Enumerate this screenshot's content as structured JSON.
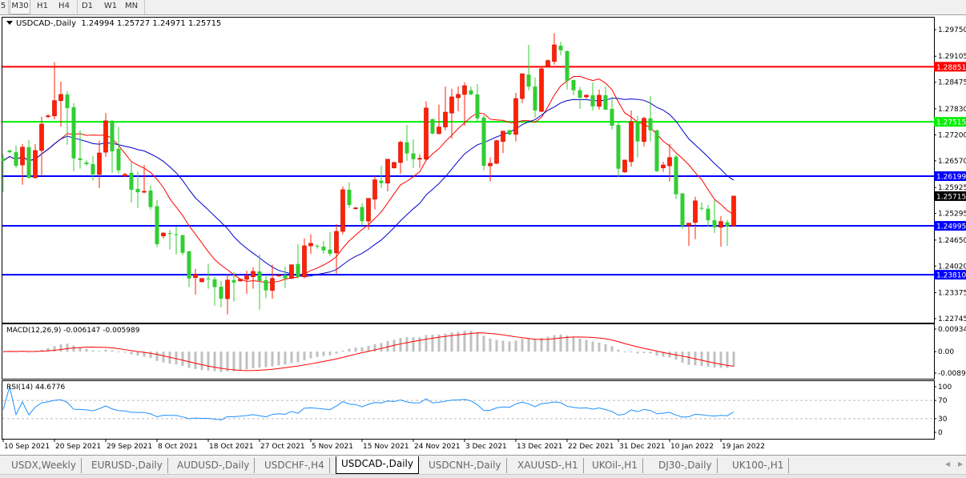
{
  "timeframes": [
    {
      "label": "5",
      "active": false
    },
    {
      "label": "M30",
      "active": true
    },
    {
      "label": "H1",
      "active": false
    },
    {
      "label": "H4",
      "active": false
    },
    {
      "label": "D1",
      "active": false
    },
    {
      "label": "W1",
      "active": false
    },
    {
      "label": "MN",
      "active": false
    }
  ],
  "header": {
    "symbol": "USDCAD-,Daily",
    "ohlc": "1.24994 1.25727 1.24971 1.25715"
  },
  "macd": {
    "label": "MACD(12,26,9) -0.006147 -0.005989",
    "ticks": [
      "0.009345",
      "0.00",
      "-0.00890"
    ]
  },
  "rsi": {
    "label": "RSI(14) 44.6776",
    "ticks": [
      "100",
      "70",
      "30",
      "0"
    ]
  },
  "colors": {
    "bull": "#ff2200",
    "bear": "#32cd32",
    "ma_fast": "#ff0000",
    "ma_slow": "#0000cc",
    "macd_hist": "#c0c0c0",
    "macd_signal": "#ff0000",
    "rsi": "#1e90ff"
  },
  "levels": [
    {
      "value": 1.28851,
      "label": "1.28851",
      "color": "#ff0000"
    },
    {
      "value": 1.27515,
      "label": "1.27515",
      "color": "#00ee00"
    },
    {
      "value": 1.26199,
      "label": "1.26199",
      "color": "#0000ff"
    },
    {
      "value": 1.24995,
      "label": "1.24995",
      "color": "#0000ff"
    },
    {
      "value": 1.2381,
      "label": "1.23810",
      "color": "#0000ff"
    }
  ],
  "current_price": {
    "value": 1.25715,
    "label": "1.25715"
  },
  "chart_data": {
    "type": "candlestick",
    "price_ticks": [
      "1.29750",
      "1.29105",
      "1.28475",
      "1.27830",
      "1.27200",
      "1.26570",
      "1.25925",
      "1.25295",
      "1.24650",
      "1.24020",
      "1.23375",
      "1.22745"
    ],
    "ylim": [
      1.22745,
      1.2975
    ],
    "date_labels": [
      {
        "index": 0,
        "label": "10 Sep 2021"
      },
      {
        "index": 8,
        "label": "20 Sep 2021"
      },
      {
        "index": 16,
        "label": "29 Sep 2021"
      },
      {
        "index": 24,
        "label": "8 Oct 2021"
      },
      {
        "index": 32,
        "label": "18 Oct 2021"
      },
      {
        "index": 40,
        "label": "27 Oct 2021"
      },
      {
        "index": 48,
        "label": "5 Nov 2021"
      },
      {
        "index": 56,
        "label": "15 Nov 2021"
      },
      {
        "index": 64,
        "label": "24 Nov 2021"
      },
      {
        "index": 72,
        "label": "3 Dec 2021"
      },
      {
        "index": 80,
        "label": "13 Dec 2021"
      },
      {
        "index": 88,
        "label": "22 Dec 2021"
      },
      {
        "index": 96,
        "label": "31 Dec 2021"
      },
      {
        "index": 104,
        "label": "10 Jan 2022"
      },
      {
        "index": 112,
        "label": "19 Jan 2022"
      }
    ],
    "ohlc": [
      [
        1.2663,
        1.2673,
        1.2581,
        1.2657
      ],
      [
        1.2682,
        1.2684,
        1.2675,
        1.2678
      ],
      [
        1.2678,
        1.2694,
        1.264,
        1.2645
      ],
      [
        1.2647,
        1.2698,
        1.2599,
        1.269
      ],
      [
        1.269,
        1.2708,
        1.2614,
        1.2616
      ],
      [
        1.2616,
        1.2698,
        1.2614,
        1.2682
      ],
      [
        1.2682,
        1.2764,
        1.262,
        1.2746
      ],
      [
        1.2764,
        1.277,
        1.276,
        1.2766
      ],
      [
        1.2766,
        1.2896,
        1.2758,
        1.2803
      ],
      [
        1.2803,
        1.2849,
        1.274,
        1.2818
      ],
      [
        1.2818,
        1.2826,
        1.2696,
        1.2785
      ],
      [
        1.2787,
        1.2797,
        1.2632,
        1.2663
      ],
      [
        1.2663,
        1.2731,
        1.2638,
        1.2659
      ],
      [
        1.2653,
        1.2659,
        1.2645,
        1.2649
      ],
      [
        1.2649,
        1.2669,
        1.2609,
        1.2624
      ],
      [
        1.2624,
        1.2706,
        1.2591,
        1.2676
      ],
      [
        1.2678,
        1.2773,
        1.2667,
        1.2754
      ],
      [
        1.2754,
        1.2756,
        1.2628,
        1.268
      ],
      [
        1.2686,
        1.2739,
        1.2626,
        1.2634
      ],
      [
        1.262,
        1.2628,
        1.2618,
        1.2624
      ],
      [
        1.2628,
        1.2655,
        1.2556,
        1.2587
      ],
      [
        1.2589,
        1.263,
        1.2543,
        1.2581
      ],
      [
        1.2581,
        1.2647,
        1.2579,
        1.2583
      ],
      [
        1.2585,
        1.2597,
        1.2539,
        1.2545
      ],
      [
        1.2547,
        1.2562,
        1.2448,
        1.2455
      ],
      [
        1.2475,
        1.2484,
        1.2469,
        1.2482
      ],
      [
        1.2482,
        1.249,
        1.2442,
        1.248
      ],
      [
        1.2479,
        1.2498,
        1.243,
        1.2477
      ],
      [
        1.2477,
        1.2477,
        1.2428,
        1.2434
      ],
      [
        1.2438,
        1.2438,
        1.2351,
        1.2372
      ],
      [
        1.2374,
        1.2395,
        1.2333,
        1.2382
      ],
      [
        1.2364,
        1.2372,
        1.2362,
        1.2372
      ],
      [
        1.2372,
        1.2407,
        1.2347,
        1.237
      ],
      [
        1.237,
        1.2376,
        1.2306,
        1.2351
      ],
      [
        1.2352,
        1.2366,
        1.2302,
        1.2323
      ],
      [
        1.2323,
        1.2382,
        1.2285,
        1.2368
      ],
      [
        1.2368,
        1.2387,
        1.2316,
        1.2362
      ],
      [
        1.2366,
        1.2372,
        1.2364,
        1.237
      ],
      [
        1.237,
        1.2391,
        1.2335,
        1.2378
      ],
      [
        1.2376,
        1.2399,
        1.2347,
        1.2389
      ],
      [
        1.2389,
        1.243,
        1.2296,
        1.2366
      ],
      [
        1.2368,
        1.2378,
        1.2325,
        1.2343
      ],
      [
        1.2343,
        1.2405,
        1.2323,
        1.2372
      ],
      [
        1.2378,
        1.2382,
        1.2376,
        1.238
      ],
      [
        1.238,
        1.2401,
        1.2349,
        1.2372
      ],
      [
        1.2372,
        1.2405,
        1.237,
        1.2405
      ],
      [
        1.2407,
        1.2455,
        1.2372,
        1.2376
      ],
      [
        1.2376,
        1.2469,
        1.2372,
        1.2451
      ],
      [
        1.2451,
        1.2479,
        1.2432,
        1.2457
      ],
      [
        1.2451,
        1.2455,
        1.2444,
        1.2449
      ],
      [
        1.2449,
        1.2463,
        1.2432,
        1.244
      ],
      [
        1.2442,
        1.2484,
        1.2426,
        1.2432
      ],
      [
        1.2434,
        1.2504,
        1.2384,
        1.2486
      ],
      [
        1.2486,
        1.2595,
        1.2479,
        1.2587
      ],
      [
        1.2587,
        1.2605,
        1.2543,
        1.255
      ],
      [
        1.2541,
        1.2545,
        1.2539,
        1.2543
      ],
      [
        1.2545,
        1.2554,
        1.25,
        1.2511
      ],
      [
        1.2511,
        1.2566,
        1.249,
        1.2566
      ],
      [
        1.2564,
        1.262,
        1.2539,
        1.2611
      ],
      [
        1.2609,
        1.2645,
        1.2591,
        1.2603
      ],
      [
        1.2603,
        1.2661,
        1.2583,
        1.2661
      ],
      [
        1.264,
        1.2655,
        1.2638,
        1.2653
      ],
      [
        1.2653,
        1.2706,
        1.2626,
        1.2702
      ],
      [
        1.2702,
        1.2744,
        1.2657,
        1.2675
      ],
      [
        1.2675,
        1.2709,
        1.264,
        1.2661
      ],
      [
        1.2661,
        1.2673,
        1.264,
        1.2663
      ],
      [
        1.2661,
        1.2801,
        1.2659,
        1.2785
      ],
      [
        1.2758,
        1.276,
        1.2721,
        1.2723
      ],
      [
        1.2723,
        1.2793,
        1.2721,
        1.2739
      ],
      [
        1.2739,
        1.2837,
        1.2731,
        1.2775
      ],
      [
        1.2773,
        1.2832,
        1.2711,
        1.2812
      ],
      [
        1.281,
        1.2837,
        1.2777,
        1.2818
      ],
      [
        1.2818,
        1.2847,
        1.2742,
        1.2839
      ],
      [
        1.2828,
        1.2837,
        1.2816,
        1.2818
      ],
      [
        1.2818,
        1.2843,
        1.2754,
        1.276
      ],
      [
        1.2762,
        1.2768,
        1.2634,
        1.2645
      ],
      [
        1.2645,
        1.2665,
        1.2607,
        1.2651
      ],
      [
        1.2651,
        1.2708,
        1.2649,
        1.2706
      ],
      [
        1.2704,
        1.2729,
        1.2676,
        1.2729
      ],
      [
        1.2731,
        1.2733,
        1.2719,
        1.2721
      ],
      [
        1.2721,
        1.2822,
        1.2704,
        1.2808
      ],
      [
        1.2808,
        1.2868,
        1.2797,
        1.2868
      ],
      [
        1.2866,
        1.2938,
        1.2828,
        1.2837
      ],
      [
        1.2837,
        1.2859,
        1.2762,
        1.2779
      ],
      [
        1.2777,
        1.2886,
        1.2775,
        1.288
      ],
      [
        1.2886,
        1.2903,
        1.2884,
        1.29
      ],
      [
        1.2898,
        1.2966,
        1.289,
        1.2938
      ],
      [
        1.2936,
        1.2946,
        1.2913,
        1.2925
      ],
      [
        1.2923,
        1.2925,
        1.283,
        1.2851
      ],
      [
        1.2853,
        1.2853,
        1.2816,
        1.2828
      ],
      [
        1.2828,
        1.2836,
        1.2783,
        1.281
      ],
      [
        1.2812,
        1.2818,
        1.2808,
        1.2816
      ],
      [
        1.2816,
        1.2847,
        1.2779,
        1.2789
      ],
      [
        1.2789,
        1.283,
        1.2781,
        1.2816
      ],
      [
        1.2816,
        1.2837,
        1.2781,
        1.2781
      ],
      [
        1.2783,
        1.2812,
        1.2733,
        1.2742
      ],
      [
        1.2744,
        1.275,
        1.2618,
        1.2638
      ],
      [
        1.263,
        1.2659,
        1.2628,
        1.2659
      ],
      [
        1.2655,
        1.2779,
        1.2643,
        1.2752
      ],
      [
        1.2752,
        1.2766,
        1.2665,
        1.2704
      ],
      [
        1.2704,
        1.2764,
        1.2692,
        1.276
      ],
      [
        1.276,
        1.2814,
        1.2704,
        1.2731
      ],
      [
        1.2731,
        1.2733,
        1.263,
        1.2632
      ],
      [
        1.264,
        1.2655,
        1.263,
        1.2647
      ],
      [
        1.2645,
        1.2698,
        1.2607,
        1.2665
      ],
      [
        1.2667,
        1.2671,
        1.2564,
        1.2576
      ],
      [
        1.2578,
        1.2579,
        1.2492,
        1.25
      ],
      [
        1.25,
        1.2506,
        1.2451,
        1.2506
      ],
      [
        1.2508,
        1.257,
        1.2467,
        1.256
      ],
      [
        1.2543,
        1.2556,
        1.2537,
        1.2541
      ],
      [
        1.2541,
        1.255,
        1.2498,
        1.2513
      ],
      [
        1.2513,
        1.2562,
        1.2482,
        1.2496
      ],
      [
        1.2496,
        1.2523,
        1.2449,
        1.251
      ],
      [
        1.2508,
        1.2514,
        1.2451,
        1.2498
      ],
      [
        1.24994,
        1.25727,
        1.24971,
        1.25715
      ]
    ]
  },
  "tabs": [
    {
      "label": "USDX,Weekly",
      "active": false
    },
    {
      "label": "EURUSD-,Daily",
      "active": false
    },
    {
      "label": "AUDUSD-,Daily",
      "active": false
    },
    {
      "label": "USDCHF-,H4",
      "active": false
    },
    {
      "label": "USDCAD-,Daily",
      "active": true
    },
    {
      "label": "USDCNH-,Daily",
      "active": false
    },
    {
      "label": "XAUUSD-,H1",
      "active": false
    },
    {
      "label": "UKOil-,H1",
      "active": false
    },
    {
      "label": "DJ30-,Daily",
      "active": false
    },
    {
      "label": "UK100-,H1",
      "active": false
    }
  ]
}
